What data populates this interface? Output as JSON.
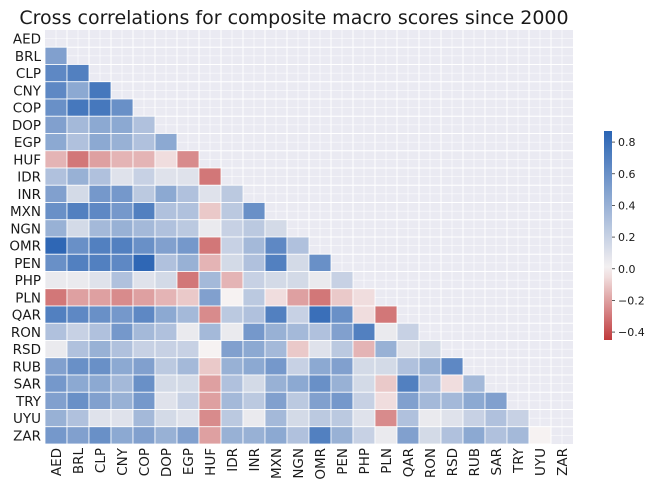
{
  "chart_data": {
    "type": "heatmap",
    "title": "Cross correlations for composite macro scores since 2000",
    "labels": [
      "AED",
      "BRL",
      "CLP",
      "CNY",
      "COP",
      "DOP",
      "EGP",
      "HUF",
      "IDR",
      "INR",
      "MXN",
      "NGN",
      "OMR",
      "PEN",
      "PHP",
      "PLN",
      "QAR",
      "RON",
      "RSD",
      "RUB",
      "SAR",
      "TRY",
      "UYU",
      "ZAR"
    ],
    "mask": "upper triangle including diagonal",
    "colorbar": {
      "range": [
        -0.45,
        0.87
      ],
      "ticks": [
        -0.4,
        -0.2,
        0.0,
        0.2,
        0.4,
        0.6,
        0.8
      ],
      "tick_labels": [
        "−0.4",
        "−0.2",
        "0.0",
        "0.2",
        "0.4",
        "0.6",
        "0.8"
      ]
    },
    "colors": {
      "negative": "#c0393b",
      "neutral": "#f6f2f2",
      "positive": "#2a64b4",
      "background": "#eaeaf2"
    },
    "grid": true,
    "rows": [
      [],
      [
        0.5
      ],
      [
        0.65,
        0.7
      ],
      [
        0.65,
        0.45,
        0.75
      ],
      [
        0.6,
        0.75,
        0.75,
        0.6
      ],
      [
        0.5,
        0.35,
        0.45,
        0.45,
        0.3
      ],
      [
        0.45,
        0.3,
        0.45,
        0.4,
        0.3,
        0.45
      ],
      [
        -0.15,
        -0.3,
        -0.2,
        -0.15,
        -0.15,
        -0.05,
        -0.25
      ],
      [
        0.3,
        0.4,
        0.3,
        0.1,
        0.2,
        0.1,
        0.1,
        -0.3
      ],
      [
        0.5,
        0.15,
        0.55,
        0.55,
        0.25,
        0.45,
        0.3,
        0.1,
        0.25
      ],
      [
        0.6,
        0.7,
        0.65,
        0.55,
        0.7,
        0.3,
        0.3,
        -0.1,
        0.25,
        0.6
      ],
      [
        0.4,
        0.15,
        0.35,
        0.4,
        0.35,
        0.3,
        0.25,
        0.05,
        0.2,
        0.25,
        0.15
      ],
      [
        0.85,
        0.6,
        0.7,
        0.7,
        0.6,
        0.5,
        0.55,
        -0.3,
        0.2,
        0.35,
        0.65,
        0.3
      ],
      [
        0.6,
        0.7,
        0.7,
        0.65,
        0.85,
        0.3,
        0.4,
        -0.15,
        0.15,
        0.3,
        0.7,
        0.15,
        0.6
      ],
      [
        0.05,
        0.05,
        0.1,
        0.3,
        0.1,
        0.15,
        -0.3,
        0.35,
        -0.15,
        0.2,
        0.15,
        0.15,
        0.05,
        0.2
      ],
      [
        -0.3,
        -0.2,
        -0.2,
        -0.25,
        -0.2,
        -0.15,
        -0.1,
        0.5,
        0.0,
        0.25,
        -0.05,
        -0.2,
        -0.3,
        -0.1,
        -0.05
      ],
      [
        0.7,
        0.65,
        0.6,
        0.55,
        0.65,
        0.45,
        0.35,
        -0.25,
        0.25,
        0.3,
        0.7,
        0.2,
        0.8,
        0.6,
        -0.05,
        -0.3
      ],
      [
        0.3,
        0.2,
        0.3,
        0.55,
        0.35,
        0.3,
        0.05,
        0.35,
        0.05,
        0.55,
        0.4,
        0.35,
        0.3,
        0.5,
        0.7,
        0.05,
        0.2
      ],
      [
        0.05,
        0.3,
        0.4,
        0.3,
        0.2,
        0.2,
        0.2,
        0.0,
        0.5,
        0.45,
        0.35,
        -0.1,
        0.1,
        0.25,
        -0.15,
        0.4,
        0.1,
        0.15
      ],
      [
        0.5,
        0.6,
        0.6,
        0.45,
        0.5,
        0.25,
        0.35,
        -0.1,
        0.4,
        0.45,
        0.55,
        0.2,
        0.45,
        0.5,
        0.15,
        0.15,
        0.3,
        0.4,
        0.65
      ],
      [
        0.55,
        0.45,
        0.45,
        0.35,
        0.6,
        0.15,
        0.15,
        -0.2,
        0.3,
        0.15,
        0.4,
        0.45,
        0.6,
        0.4,
        0.15,
        -0.1,
        0.7,
        0.3,
        -0.05,
        0.35
      ],
      [
        0.5,
        0.6,
        0.5,
        0.4,
        0.55,
        0.1,
        0.2,
        -0.2,
        0.35,
        0.25,
        0.5,
        0.25,
        0.5,
        0.55,
        0.2,
        -0.05,
        0.5,
        0.35,
        0.35,
        0.45,
        0.5
      ],
      [
        0.4,
        0.3,
        0.1,
        0.1,
        0.35,
        0.15,
        0.1,
        -0.25,
        0.25,
        0.05,
        0.35,
        0.15,
        0.25,
        0.25,
        0.1,
        -0.25,
        0.3,
        0.05,
        0.1,
        0.2,
        0.3,
        0.2
      ],
      [
        0.55,
        0.5,
        0.6,
        0.45,
        0.5,
        0.4,
        0.5,
        -0.2,
        0.4,
        0.4,
        0.45,
        0.3,
        0.7,
        0.4,
        0.2,
        0.05,
        0.5,
        0.15,
        0.3,
        0.45,
        0.3,
        0.35,
        0.0
      ]
    ]
  }
}
